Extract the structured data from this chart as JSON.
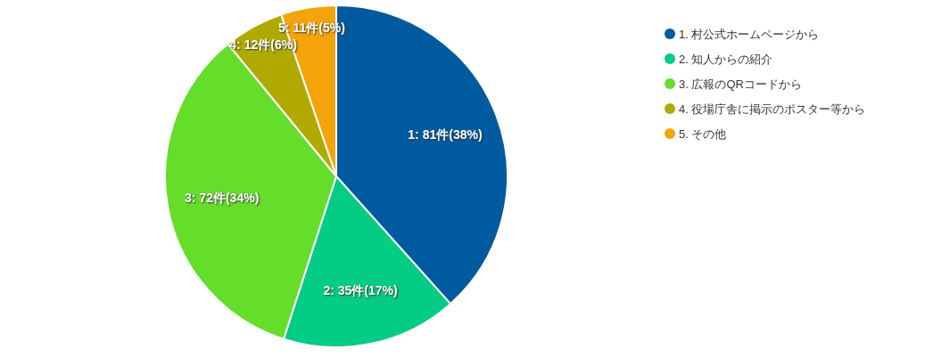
{
  "chart_data": {
    "type": "pie",
    "categories": [
      "1. 村公式ホームページから",
      "2. 知人からの紹介",
      "3. 広報のQRコードから",
      "4. 役場庁舎に掲示のポスター等から",
      "5. その他"
    ],
    "values": [
      81,
      35,
      72,
      12,
      11
    ],
    "colors": [
      "#005aa0",
      "#04cc85",
      "#65dd2b",
      "#b0aa00",
      "#f4a40a"
    ],
    "value_labels": [
      "1: 81件(38%)",
      "2: 35件(17%)",
      "3: 72件(34%)",
      "4: 12件(6%)",
      "5: 11件(5%)"
    ],
    "legend": "right"
  }
}
